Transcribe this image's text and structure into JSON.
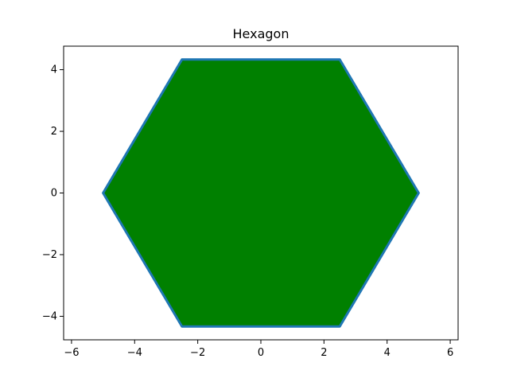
{
  "chart_data": {
    "type": "area",
    "title": "Hexagon",
    "xlabel": "",
    "ylabel": "",
    "xlim": [
      -6.25,
      6.25
    ],
    "ylim": [
      -4.763,
      4.763
    ],
    "xticks": [
      -6,
      -4,
      -2,
      0,
      2,
      4,
      6
    ],
    "yticks": [
      -4,
      -2,
      0,
      2,
      4
    ],
    "xtick_labels": [
      "−6",
      "−4",
      "−2",
      "0",
      "2",
      "4",
      "6"
    ],
    "ytick_labels": [
      "−4",
      "−2",
      "0",
      "2",
      "4"
    ],
    "grid": false,
    "series": [
      {
        "x": [
          5,
          2.5,
          -2.5,
          -5,
          -2.5,
          2.5,
          5
        ],
        "y": [
          0,
          4.33,
          4.33,
          0,
          -4.33,
          -4.33,
          0
        ],
        "fill_color": "#008000",
        "edge_color": "#1f77b4"
      }
    ]
  }
}
